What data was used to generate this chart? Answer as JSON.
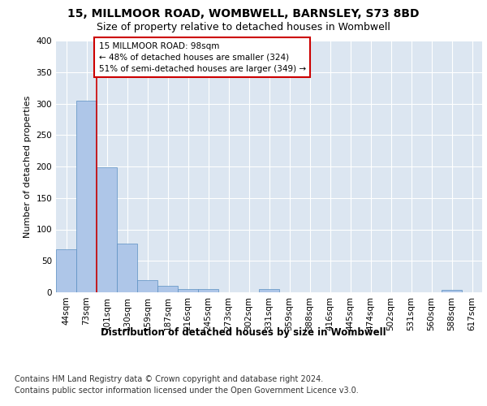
{
  "title1": "15, MILLMOOR ROAD, WOMBWELL, BARNSLEY, S73 8BD",
  "title2": "Size of property relative to detached houses in Wombwell",
  "xlabel": "Distribution of detached houses by size in Wombwell",
  "ylabel": "Number of detached properties",
  "bin_labels": [
    "44sqm",
    "73sqm",
    "101sqm",
    "130sqm",
    "159sqm",
    "187sqm",
    "216sqm",
    "245sqm",
    "273sqm",
    "302sqm",
    "331sqm",
    "359sqm",
    "388sqm",
    "416sqm",
    "445sqm",
    "474sqm",
    "502sqm",
    "531sqm",
    "560sqm",
    "588sqm",
    "617sqm"
  ],
  "bar_values": [
    68,
    305,
    199,
    77,
    19,
    10,
    5,
    5,
    0,
    0,
    5,
    0,
    0,
    0,
    0,
    0,
    0,
    0,
    0,
    4,
    0
  ],
  "bar_color": "#aec6e8",
  "bar_edge_color": "#5a8fc2",
  "annotation_text": "15 MILLMOOR ROAD: 98sqm\n← 48% of detached houses are smaller (324)\n51% of semi-detached houses are larger (349) →",
  "vline_x": 1.5,
  "vline_color": "#cc0000",
  "annotation_box_color": "#ffffff",
  "annotation_box_edge_color": "#cc0000",
  "footer1": "Contains HM Land Registry data © Crown copyright and database right 2024.",
  "footer2": "Contains public sector information licensed under the Open Government Licence v3.0.",
  "ylim": [
    0,
    400
  ],
  "yticks": [
    0,
    50,
    100,
    150,
    200,
    250,
    300,
    350,
    400
  ],
  "background_color": "#ffffff",
  "plot_bg_color": "#dce6f1",
  "grid_color": "#ffffff",
  "title1_fontsize": 10,
  "title2_fontsize": 9,
  "xlabel_fontsize": 8.5,
  "ylabel_fontsize": 8,
  "tick_fontsize": 7.5,
  "footer_fontsize": 7,
  "annotation_fontsize": 7.5
}
